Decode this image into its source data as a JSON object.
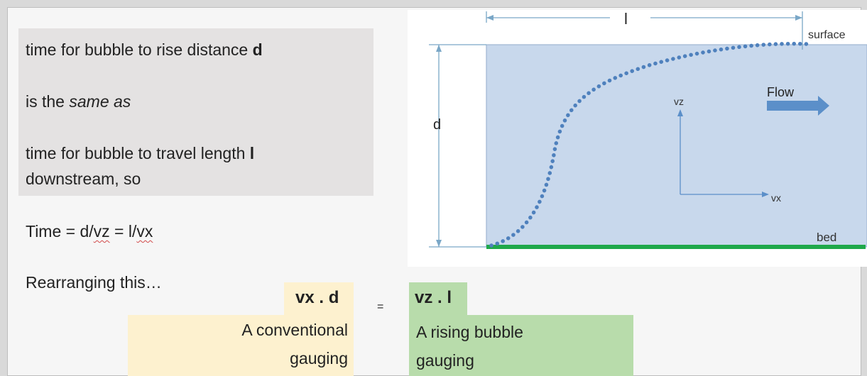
{
  "left_text": {
    "line1_prefix": "time for bubble to rise distance ",
    "line1_bold": "d",
    "line2_prefix": "is the ",
    "line2_italic": "same as",
    "line3_prefix": "time for bubble to travel length ",
    "line3_bold": "l",
    "line4": "downstream, so",
    "time_eq_1": "Time = d/",
    "time_eq_vz": "vz",
    "time_eq_2": " = l/",
    "time_eq_vx": "vx",
    "rearranging": "Rearranging this…"
  },
  "equation": {
    "left_term": "vx . d",
    "equals": "=",
    "right_term": "vz . l",
    "left_caption_line1": "A conventional",
    "left_caption_line2": "gauging",
    "right_caption_line1": "A rising bubble",
    "right_caption_line2": "gauging"
  },
  "diagram": {
    "length_label": "l",
    "surface_label": "surface",
    "depth_label": "d",
    "flow_label": "Flow",
    "vz_label": "vz",
    "vx_label": "vx",
    "bed_label": "bed",
    "colors": {
      "water": "#c8d8ec",
      "water_border": "#9fb6d3",
      "bubbles": "#4f81bd",
      "arrow": "#5b8fc9",
      "bed": "#1fa84a",
      "dim_lines": "#7aa7c7"
    }
  }
}
